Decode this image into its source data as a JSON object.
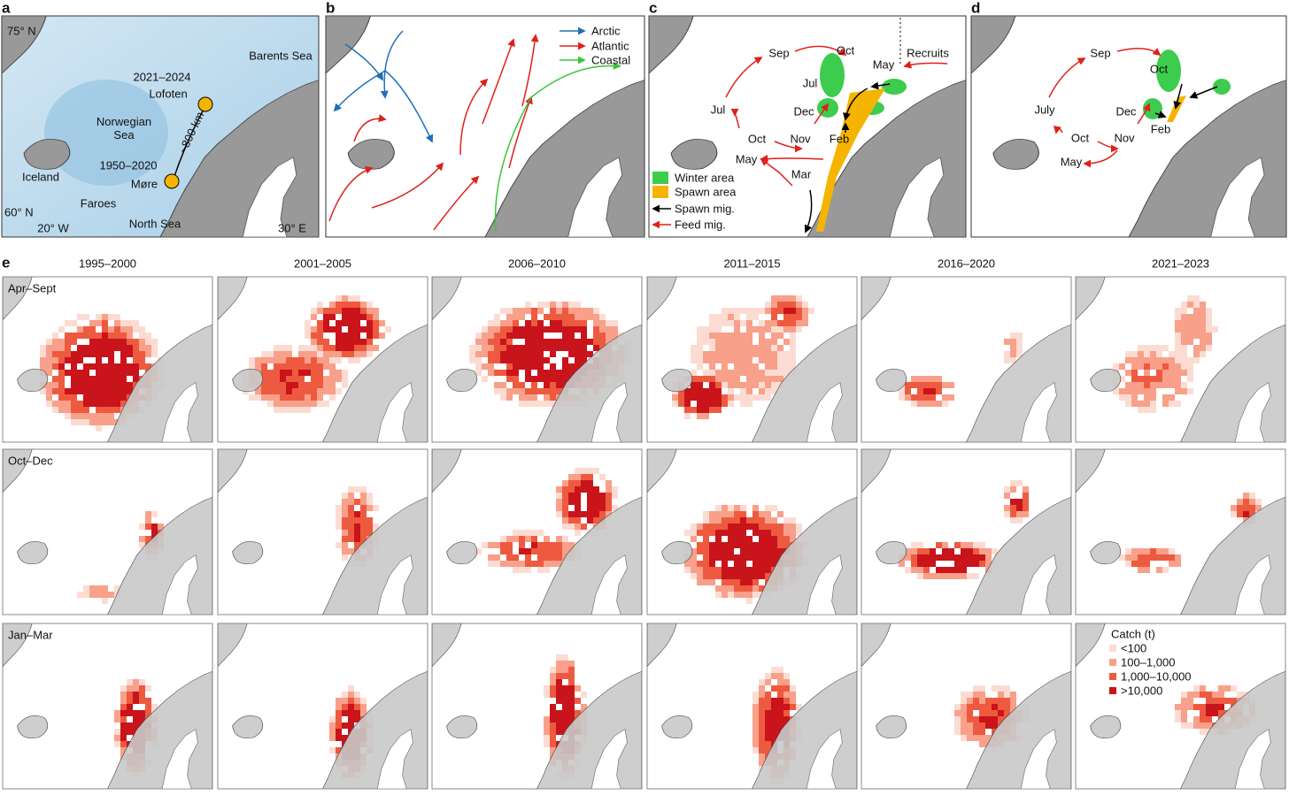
{
  "panel_a": {
    "label": "a",
    "lat_labels": [
      "75° N",
      "60° N"
    ],
    "lon_labels": [
      "20° W",
      "30° E"
    ],
    "places": [
      "Barents Sea",
      "2021–2024",
      "Lofoten",
      "Norwegian Sea",
      "~800 km",
      "1950–2020",
      "Møre",
      "Iceland",
      "Faroes",
      "North Sea"
    ]
  },
  "panel_b": {
    "label": "b",
    "legend": [
      {
        "name": "Arctic",
        "color": "#1f6fb8"
      },
      {
        "name": "Atlantic",
        "color": "#e0201b"
      },
      {
        "name": "Coastal",
        "color": "#3cc43c"
      }
    ]
  },
  "panel_c": {
    "label": "c",
    "months": [
      "Sep",
      "Oct",
      "May",
      "Recruits",
      "Jul",
      "Dec",
      "Jul",
      "Oct",
      "Nov",
      "Feb",
      "May",
      "Mar"
    ],
    "legend": [
      {
        "name": "Winter area",
        "color": "#3dcc4e"
      },
      {
        "name": "Spawn area",
        "color": "#f5b400"
      },
      {
        "name": "Spawn mig.",
        "color": "#000000"
      },
      {
        "name": "Feed mig.",
        "color": "#e0201b"
      }
    ]
  },
  "panel_d": {
    "label": "d",
    "months": [
      "Sep",
      "Oct",
      "July",
      "Dec",
      "Feb",
      "Oct",
      "Nov",
      "May"
    ]
  },
  "panel_e": {
    "label": "e",
    "periods": [
      "1995–2000",
      "2001–2005",
      "2006–2010",
      "2011–2015",
      "2016–2020",
      "2021–2023"
    ],
    "seasons": [
      "Apr–Sept",
      "Oct–Dec",
      "Jan–Mar"
    ],
    "legend_title": "Catch (t)",
    "legend": [
      {
        "name": "<100",
        "color": "#fcdcd2"
      },
      {
        "name": "100–1,000",
        "color": "#f8a08a"
      },
      {
        "name": "1,000–10,000",
        "color": "#ee5a40"
      },
      {
        "name": ">10,000",
        "color": "#c8141a"
      }
    ]
  }
}
